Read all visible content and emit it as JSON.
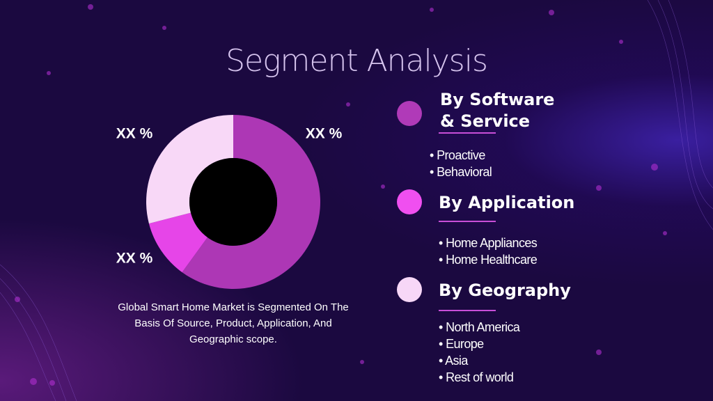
{
  "title": "Segment Analysis",
  "chart_data": {
    "type": "donut",
    "values": [
      60,
      11,
      29
    ],
    "colors": [
      "#ad37b5",
      "#e645e8",
      "#f8d8f7"
    ],
    "slice_labels": [
      "XX %",
      "XX %",
      "XX %"
    ]
  },
  "caption": "Global Smart Home Market is Segmented On The Basis Of Source, Product, Application, And Geographic scope.",
  "segments": [
    {
      "title": "By Software & Service",
      "color": "#b03ab8",
      "items": [
        "• Proactive",
        "• Behavioral"
      ]
    },
    {
      "title": "By Application",
      "color": "#f04ff0",
      "items": [
        "• Home Appliances",
        "• Home Healthcare"
      ]
    },
    {
      "title": "By Geography",
      "color": "#f7d7f7",
      "items": [
        "• North America",
        "• Europe",
        "• Asia",
        "• Rest of world"
      ]
    }
  ]
}
